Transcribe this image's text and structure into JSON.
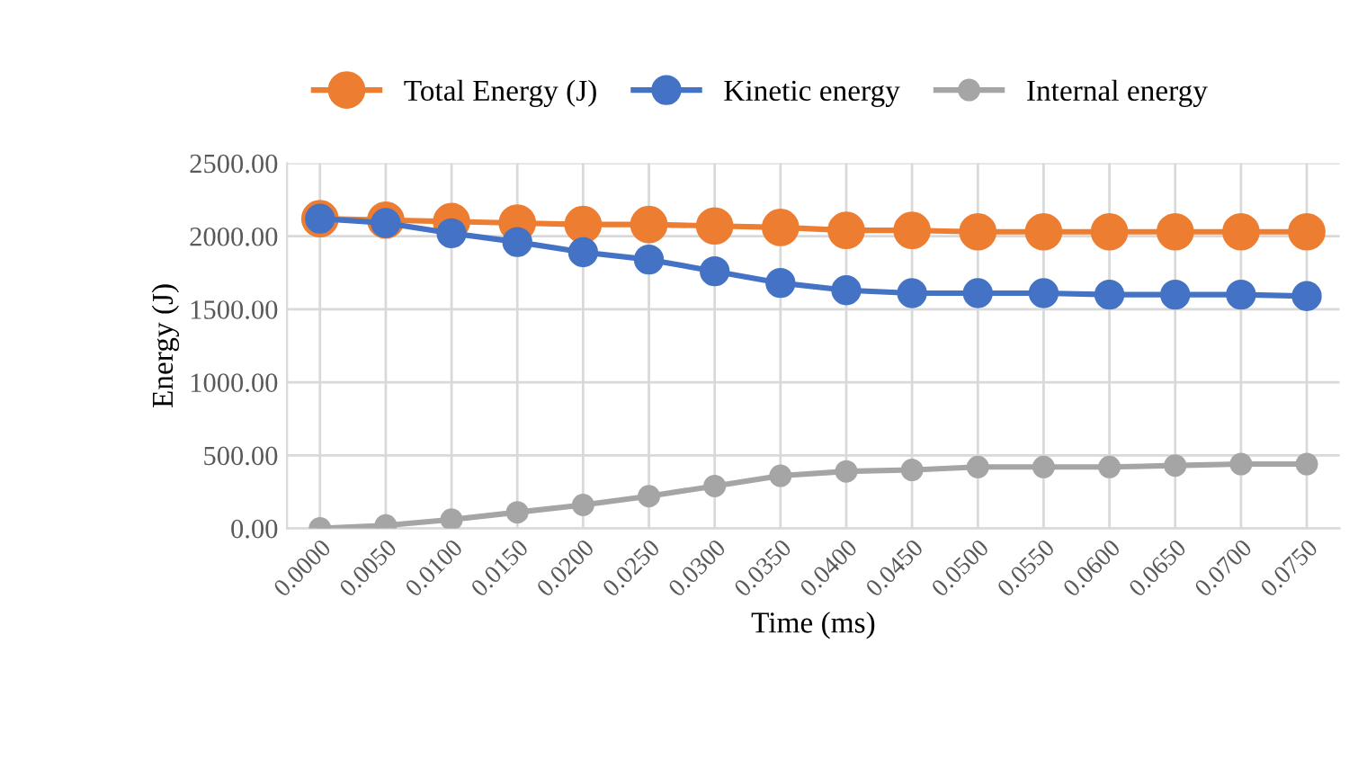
{
  "chart_data": {
    "type": "line",
    "xlabel": "Time (ms)",
    "ylabel": "Energy (J)",
    "categories": [
      "0.0000",
      "0.0050",
      "0.0100",
      "0.0150",
      "0.0200",
      "0.0250",
      "0.0300",
      "0.0350",
      "0.0400",
      "0.0450",
      "0.0500",
      "0.0550",
      "0.0600",
      "0.0650",
      "0.0700",
      "0.0750"
    ],
    "series": [
      {
        "name": "Total Energy (J)",
        "color": "#ed7d31",
        "values": [
          2120,
          2110,
          2100,
          2090,
          2080,
          2080,
          2070,
          2060,
          2040,
          2040,
          2030,
          2030,
          2030,
          2030,
          2030,
          2030
        ]
      },
      {
        "name": "Kinetic energy",
        "color": "#4472c4",
        "values": [
          2120,
          2090,
          2020,
          1960,
          1890,
          1840,
          1760,
          1680,
          1630,
          1610,
          1610,
          1610,
          1600,
          1600,
          1600,
          1590
        ]
      },
      {
        "name": "Internal energy",
        "color": "#a5a5a5",
        "values": [
          0,
          20,
          60,
          110,
          160,
          220,
          290,
          360,
          390,
          400,
          420,
          420,
          420,
          430,
          440,
          440
        ]
      }
    ],
    "ylim": [
      0,
      2500
    ],
    "yticks": [
      {
        "value": 0,
        "label": "0.00"
      },
      {
        "value": 500,
        "label": "500.00"
      },
      {
        "value": 1000,
        "label": "1000.00"
      },
      {
        "value": 1500,
        "label": "1500.00"
      },
      {
        "value": 2000,
        "label": "2000.00"
      },
      {
        "value": 2500,
        "label": "2500.00"
      }
    ],
    "grid": true,
    "legend": "top",
    "marker": "circle",
    "line_style": "solid"
  }
}
